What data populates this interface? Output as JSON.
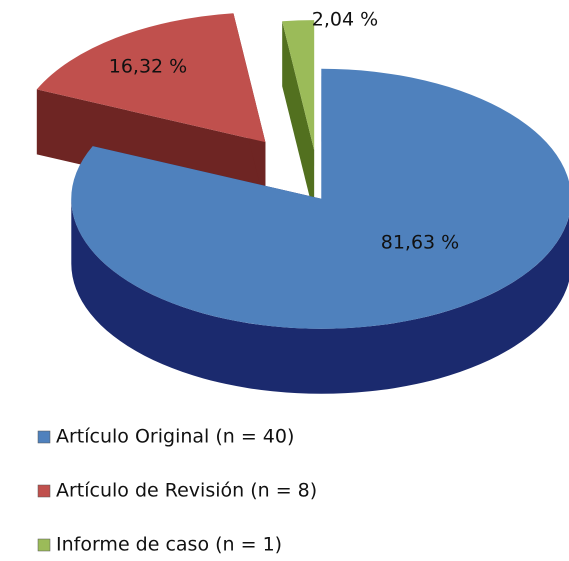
{
  "chart_data": {
    "type": "pie",
    "categories": [
      "Artículo Original (n = 40)",
      "Artículo de Revisión (n = 8)",
      "Informe de caso (n = 1)"
    ],
    "values": [
      81.63,
      16.32,
      2.04
    ],
    "value_labels": [
      "81,63 %",
      "16,32 %",
      "2,04 %"
    ],
    "colors": [
      "#4f81bd",
      "#c0504d",
      "#9bbb59"
    ],
    "side_colors": [
      "#1b2a6e",
      "#6e2523",
      "#52701f"
    ],
    "legend": "bottom-left"
  }
}
